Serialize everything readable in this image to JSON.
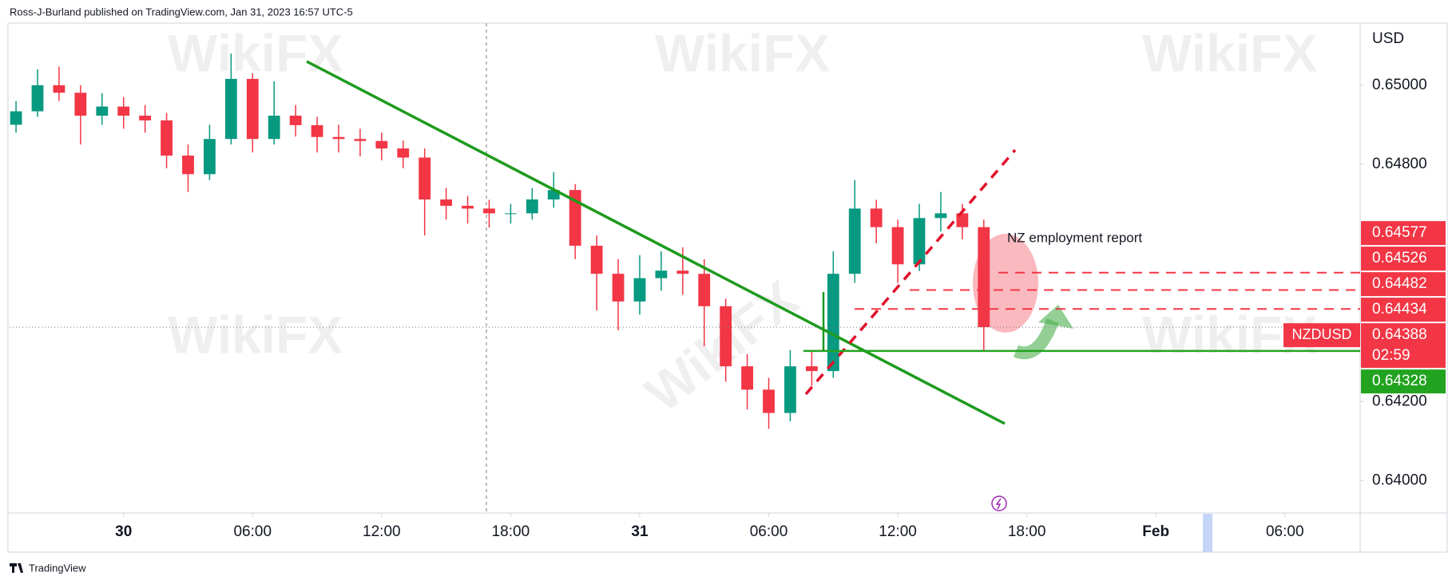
{
  "chart_data": {
    "type": "candlestick",
    "header": "Ross-J-Burland published on TradingView.com, Jan 31, 2023 16:57 UTC-5",
    "footer": "TradingView",
    "currency": "USD",
    "watermark": "WikiFX",
    "annotation": "NZ employment report",
    "up_color": "#089981",
    "down_color": "#f23645",
    "grid": false,
    "xlim": [
      -5.3,
      57.5
    ],
    "xticks": [
      {
        "value": 0,
        "label": "30"
      },
      {
        "value": 6,
        "label": "06:00"
      },
      {
        "value": 12,
        "label": "12:00"
      },
      {
        "value": 18,
        "label": "18:00"
      },
      {
        "value": 24,
        "label": "31"
      },
      {
        "value": 30,
        "label": "06:00"
      },
      {
        "value": 36,
        "label": "12:00"
      },
      {
        "value": 42,
        "label": "18:00"
      },
      {
        "value": 48,
        "label": "Feb"
      },
      {
        "value": 54,
        "label": "06:00"
      }
    ],
    "ylim": [
      0.63918,
      0.65157
    ],
    "yticks": [
      {
        "value": 0.64,
        "label": "0.64000"
      },
      {
        "value": 0.642,
        "label": "0.64200"
      },
      {
        "value": 0.648,
        "label": "0.64800"
      },
      {
        "value": 0.65,
        "label": "0.65000"
      }
    ],
    "x": [
      -5,
      -4,
      -3,
      -2,
      -1,
      0,
      1,
      2,
      3,
      4,
      5,
      6,
      7,
      8,
      9,
      10,
      11,
      12,
      13,
      14,
      15,
      16,
      17,
      18,
      19,
      20,
      21,
      22,
      23,
      24,
      25,
      26,
      27,
      28,
      29,
      30,
      31,
      32,
      33,
      34,
      35,
      36,
      37,
      38,
      39,
      40
    ],
    "open": [
      0.649,
      0.64934,
      0.65,
      0.64981,
      0.64923,
      0.64946,
      0.64923,
      0.64911,
      0.64822,
      0.64775,
      0.64864,
      0.65016,
      0.64864,
      0.64923,
      0.64899,
      0.64869,
      0.64864,
      0.64859,
      0.6484,
      0.64817,
      0.64711,
      0.64695,
      0.64688,
      0.64676,
      0.64676,
      0.64711,
      0.64735,
      0.64594,
      0.64523,
      0.64453,
      0.64512,
      0.64531,
      0.64523,
      0.64441,
      0.64289,
      0.6423,
      0.64171,
      0.64289,
      0.64277,
      0.64523,
      0.64688,
      0.64641,
      0.64547,
      0.64664,
      0.64676,
      0.64641
    ],
    "high": [
      0.6496,
      0.6504,
      0.65047,
      0.65,
      0.6498,
      0.6497,
      0.6495,
      0.6493,
      0.6485,
      0.649,
      0.6508,
      0.6503,
      0.6501,
      0.6495,
      0.6492,
      0.649,
      0.6489,
      0.6488,
      0.6486,
      0.6484,
      0.6474,
      0.6472,
      0.6471,
      0.647,
      0.6474,
      0.6478,
      0.6475,
      0.6462,
      0.6456,
      0.6457,
      0.6458,
      0.6459,
      0.6456,
      0.6446,
      0.6432,
      0.6426,
      0.6433,
      0.6433,
      0.6458,
      0.6476,
      0.6471,
      0.6466,
      0.647,
      0.6473,
      0.647,
      0.6466
    ],
    "low": [
      0.6488,
      0.6492,
      0.6496,
      0.6485,
      0.649,
      0.6489,
      0.6488,
      0.6479,
      0.6473,
      0.6476,
      0.6485,
      0.6483,
      0.6485,
      0.6487,
      0.6483,
      0.6483,
      0.6482,
      0.6481,
      0.6479,
      0.6462,
      0.6466,
      0.6465,
      0.6464,
      0.6465,
      0.6466,
      0.6469,
      0.6456,
      0.6443,
      0.6438,
      0.6442,
      0.6448,
      0.6447,
      0.6434,
      0.6425,
      0.6418,
      0.64131,
      0.6415,
      0.6424,
      0.6426,
      0.645,
      0.646,
      0.645,
      0.6453,
      0.6463,
      0.6461,
      0.6433
    ],
    "close": [
      0.64934,
      0.65,
      0.64981,
      0.64923,
      0.64946,
      0.64923,
      0.64911,
      0.64822,
      0.64775,
      0.64864,
      0.65016,
      0.64864,
      0.64923,
      0.64899,
      0.64869,
      0.64864,
      0.64859,
      0.6484,
      0.64817,
      0.64711,
      0.64695,
      0.64688,
      0.64676,
      0.64676,
      0.64711,
      0.64735,
      0.64594,
      0.64523,
      0.64453,
      0.64512,
      0.64531,
      0.64523,
      0.64441,
      0.64289,
      0.6423,
      0.64171,
      0.64289,
      0.64277,
      0.64523,
      0.64688,
      0.64641,
      0.64547,
      0.64664,
      0.64676,
      0.64641,
      0.64388
    ],
    "levels": [
      {
        "value": 0.64577,
        "color": "#f23645",
        "line": "none"
      },
      {
        "value": 0.64526,
        "color": "#f23645",
        "line": "dashed"
      },
      {
        "value": 0.64482,
        "color": "#f23645",
        "line": "dashed"
      },
      {
        "value": 0.64434,
        "color": "#f23645",
        "line": "dashed"
      },
      {
        "value": 0.64328,
        "color": "#22a31f",
        "line": "solid"
      }
    ],
    "last": {
      "symbol": "NZDUSD",
      "value": 0.64388,
      "countdown": "02:59",
      "color": "#f23645"
    }
  }
}
